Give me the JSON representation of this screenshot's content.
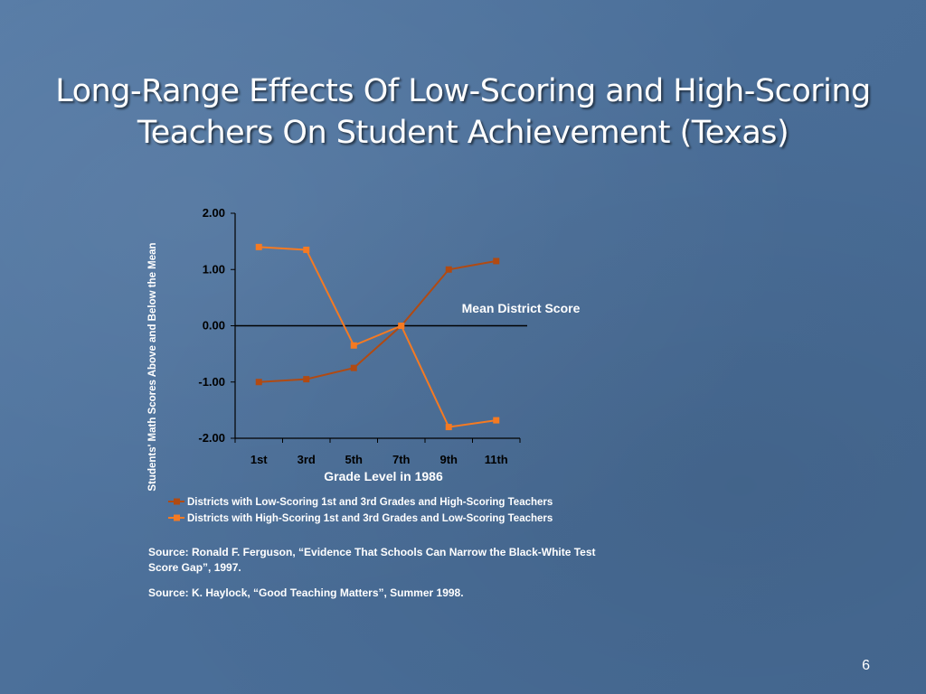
{
  "slide": {
    "title": "Long-Range Effects Of Low-Scoring and High-Scoring Teachers On Student Achievement (Texas)",
    "sources": [
      "Source: Ronald F. Ferguson, “Evidence That Schools Can Narrow  the Black-White Test Score Gap”, 1997.",
      "Source: K. Haylock, “Good Teaching Matters”, Summer 1998."
    ],
    "page_number": "6"
  },
  "chart_data": {
    "type": "line",
    "categories": [
      "1st",
      "3rd",
      "5th",
      "7th",
      "9th",
      "11th"
    ],
    "xlabel": "Grade Level in 1986",
    "ylabel": "Students' Math Scores Above and Below the Mean",
    "ylim": [
      -2,
      2
    ],
    "yticks": [
      2,
      1,
      0,
      -1,
      -2
    ],
    "ytick_labels": [
      "2.00",
      "1.00",
      "0.00",
      "-1.00",
      "-2.00"
    ],
    "annotation": "Mean District Score",
    "legend_position": "bottom",
    "grid": false,
    "series": [
      {
        "name": "Districts with Low-Scoring 1st and 3rd Grades and High-Scoring Teachers",
        "values": [
          -1.0,
          -0.95,
          -0.75,
          0.0,
          1.0,
          1.15
        ],
        "color": "#b14a12"
      },
      {
        "name": "Districts with High-Scoring 1st and 3rd Grades and Low-Scoring Teachers",
        "values": [
          1.4,
          1.35,
          -0.35,
          0.0,
          -1.8,
          -1.68
        ],
        "color": "#f57a22"
      }
    ]
  }
}
